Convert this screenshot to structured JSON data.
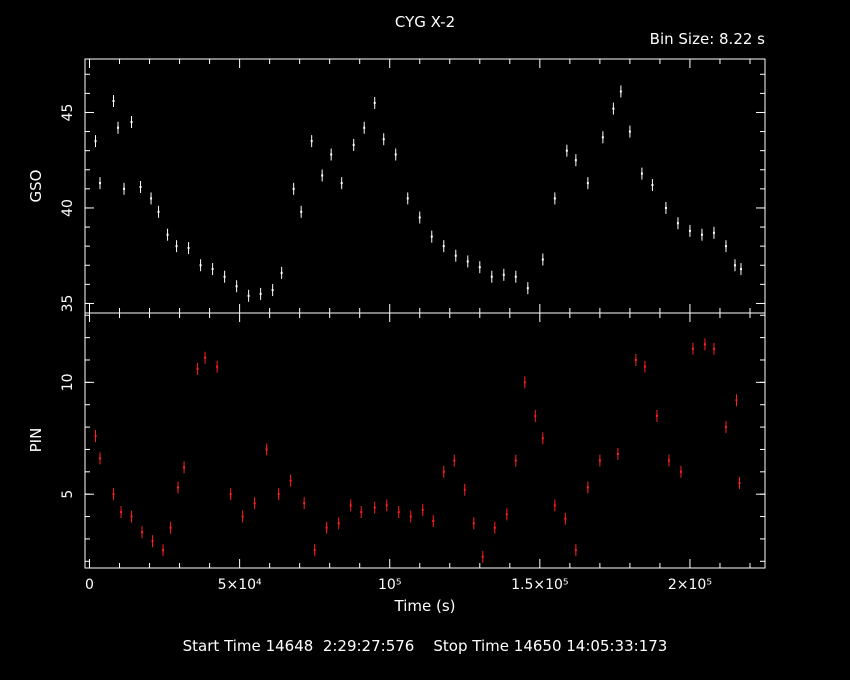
{
  "header": {
    "title": "CYG X-2",
    "bin_size": "Bin Size: 8.22 s"
  },
  "footer": {
    "start_label": "Start Time",
    "start_value": "14648  2:29:27:576",
    "stop_label": "Stop Time",
    "stop_value": "14650 14:05:33:173"
  },
  "colors": {
    "background": "#000000",
    "axes": "#ffffff",
    "gso": "#ffffff",
    "pin": "#ff2020"
  },
  "chart_data": [
    {
      "type": "scatter",
      "name": "GSO",
      "ylabel": "GSO",
      "xlabel": "Time (s)",
      "xlim": [
        -1500,
        225000
      ],
      "ylim": [
        34.5,
        47.8
      ],
      "yticks": [
        35,
        40,
        45
      ],
      "xticks": [
        {
          "v": 50000,
          "label": "5×10⁴"
        },
        {
          "v": 100000,
          "label": "10⁵"
        },
        {
          "v": 150000,
          "label": "1.5×10⁵"
        },
        {
          "v": 200000,
          "label": "2×10⁵"
        }
      ],
      "x": [
        2000,
        3500,
        8000,
        9500,
        11500,
        14000,
        17000,
        20500,
        23000,
        26000,
        29000,
        33000,
        37000,
        41000,
        45000,
        49000,
        53000,
        57000,
        61000,
        64000,
        68000,
        70500,
        74000,
        77500,
        80500,
        84000,
        88000,
        91500,
        95000,
        98000,
        102000,
        106000,
        110000,
        114000,
        118000,
        122000,
        126000,
        130000,
        134000,
        138000,
        142000,
        146000,
        151000,
        155000,
        159000,
        162000,
        166000,
        171000,
        174500,
        177000,
        180000,
        184000,
        187500,
        192000,
        196000,
        200000,
        204000,
        208000,
        212000,
        215000,
        217000
      ],
      "y": [
        43.5,
        41.3,
        45.6,
        44.2,
        41.0,
        44.5,
        41.1,
        40.5,
        39.8,
        38.6,
        38.0,
        37.9,
        37.0,
        36.8,
        36.4,
        35.9,
        35.4,
        35.5,
        35.7,
        36.6,
        41.0,
        39.8,
        43.5,
        41.7,
        42.8,
        41.3,
        43.3,
        44.2,
        45.5,
        43.6,
        42.8,
        40.5,
        39.5,
        38.5,
        38.0,
        37.5,
        37.2,
        36.9,
        36.4,
        36.5,
        36.4,
        35.8,
        37.3,
        40.5,
        43.0,
        42.5,
        41.3,
        43.7,
        45.2,
        46.1,
        44.0,
        41.8,
        41.2,
        40.0,
        39.2,
        38.8,
        38.6,
        38.7,
        38.0,
        37.0,
        36.8
      ]
    },
    {
      "type": "scatter",
      "name": "PIN",
      "ylabel": "PIN",
      "xlabel": "Time (s)",
      "xlim": [
        -1500,
        225000
      ],
      "ylim": [
        1.7,
        13.1
      ],
      "yticks": [
        5,
        10
      ],
      "xticks": [
        {
          "v": 50000,
          "label": "5×10⁴"
        },
        {
          "v": 100000,
          "label": "10⁵"
        },
        {
          "v": 150000,
          "label": "1.5×10⁵"
        },
        {
          "v": 200000,
          "label": "2×10⁵"
        }
      ],
      "x": [
        2000,
        3500,
        8000,
        10500,
        14000,
        17500,
        21000,
        24500,
        27000,
        29500,
        31500,
        36000,
        38500,
        42500,
        47000,
        51000,
        55000,
        59000,
        63000,
        67000,
        71500,
        75000,
        79000,
        83000,
        87000,
        90500,
        95000,
        99000,
        103000,
        107000,
        111000,
        114500,
        118000,
        121500,
        125000,
        128000,
        131000,
        135000,
        139000,
        142000,
        145000,
        148500,
        151000,
        155000,
        158500,
        162000,
        166000,
        170000,
        176000,
        182000,
        185000,
        189000,
        193000,
        197000,
        201000,
        205000,
        208000,
        212000,
        215500,
        216500
      ],
      "y": [
        7.6,
        6.6,
        5.0,
        4.2,
        4.0,
        3.3,
        2.9,
        2.5,
        3.5,
        5.3,
        6.2,
        10.6,
        11.1,
        10.7,
        5.0,
        4.0,
        4.6,
        7.0,
        5.0,
        5.6,
        4.6,
        2.5,
        3.5,
        3.7,
        4.5,
        4.2,
        4.4,
        4.5,
        4.2,
        4.0,
        4.3,
        3.8,
        6.0,
        6.5,
        5.2,
        3.7,
        2.2,
        3.5,
        4.1,
        6.5,
        10.0,
        8.5,
        7.5,
        4.5,
        3.9,
        2.5,
        5.3,
        6.5,
        6.8,
        11.0,
        10.7,
        8.5,
        6.5,
        6.0,
        11.5,
        11.7,
        11.5,
        8.0,
        9.2,
        5.5
      ]
    }
  ]
}
